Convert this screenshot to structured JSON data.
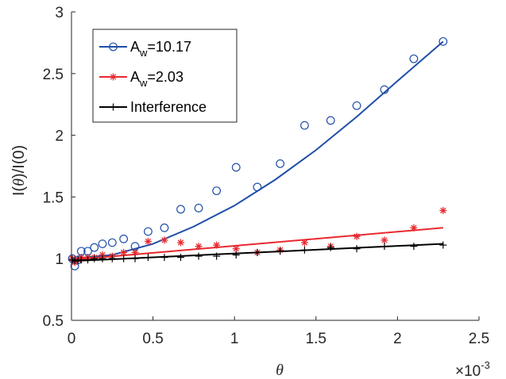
{
  "chart_data": {
    "type": "scatter",
    "xlabel": "θ",
    "ylabel": {
      "prefix": "I(",
      "symbol": "θ",
      "suffix": ")/I(0)"
    },
    "x_exponent": {
      "base": "×10",
      "power": "-3"
    },
    "xlim": [
      0,
      2.5
    ],
    "ylim": [
      0.5,
      3
    ],
    "xticks": [
      "0",
      "0.5",
      "1",
      "1.5",
      "2",
      "2.5"
    ],
    "yticks": [
      "0.5",
      "1",
      "1.5",
      "2",
      "2.5",
      "3"
    ],
    "grid": false,
    "legend_position": "top-left",
    "series": [
      {
        "name": "A_w=10.17",
        "legend_main": "A",
        "legend_sub": "w",
        "legend_rest": "=10.17",
        "marker": "circle",
        "color": "#1f4ea8",
        "x": [
          0.005,
          0.02,
          0.04,
          0.06,
          0.1,
          0.14,
          0.19,
          0.25,
          0.32,
          0.39,
          0.47,
          0.57,
          0.67,
          0.78,
          0.89,
          1.01,
          1.14,
          1.28,
          1.43,
          1.59,
          1.75,
          1.92,
          2.1,
          2.28
        ],
        "y": [
          1.0,
          0.94,
          0.99,
          1.06,
          1.06,
          1.09,
          1.12,
          1.13,
          1.16,
          1.1,
          1.22,
          1.25,
          1.4,
          1.41,
          1.55,
          1.74,
          1.58,
          1.77,
          2.08,
          2.12,
          2.24,
          2.37,
          2.62,
          2.76
        ],
        "fit_x": [
          0,
          0.25,
          0.5,
          0.75,
          1.0,
          1.25,
          1.5,
          1.75,
          2.0,
          2.28
        ],
        "fit_y": [
          1.0,
          1.03,
          1.12,
          1.26,
          1.43,
          1.64,
          1.88,
          2.15,
          2.44,
          2.76
        ]
      },
      {
        "name": "A_w=2.03",
        "legend_main": "A",
        "legend_sub": "w",
        "legend_rest": "=2.03",
        "marker": "asterisk",
        "color": "#e8292f",
        "x": [
          0.005,
          0.02,
          0.04,
          0.06,
          0.1,
          0.14,
          0.19,
          0.25,
          0.32,
          0.39,
          0.47,
          0.57,
          0.67,
          0.78,
          0.89,
          1.01,
          1.14,
          1.28,
          1.43,
          1.59,
          1.75,
          1.92,
          2.1,
          2.28
        ],
        "y": [
          1.0,
          0.97,
          0.99,
          1.01,
          1.01,
          1.01,
          1.03,
          1.02,
          1.05,
          1.05,
          1.14,
          1.15,
          1.13,
          1.1,
          1.11,
          1.08,
          1.05,
          1.07,
          1.13,
          1.1,
          1.18,
          1.15,
          1.25,
          1.39
        ],
        "fit_x": [
          0,
          2.28
        ],
        "fit_y": [
          0.99,
          1.25
        ]
      },
      {
        "name": "Interference",
        "legend_main": "Interference",
        "legend_sub": "",
        "legend_rest": "",
        "marker": "plus",
        "color": "#000000",
        "x": [
          0.005,
          0.02,
          0.04,
          0.06,
          0.1,
          0.14,
          0.19,
          0.25,
          0.32,
          0.39,
          0.47,
          0.57,
          0.67,
          0.78,
          0.89,
          1.01,
          1.14,
          1.28,
          1.43,
          1.59,
          1.75,
          1.92,
          2.1,
          2.28
        ],
        "y": [
          0.99,
          0.98,
          0.99,
          0.99,
          0.99,
          1.0,
          1.0,
          1.0,
          1.0,
          1.0,
          1.01,
          1.01,
          1.01,
          1.02,
          1.02,
          1.03,
          1.05,
          1.06,
          1.07,
          1.09,
          1.08,
          1.1,
          1.1,
          1.11
        ],
        "fit_x": [
          0,
          2.28
        ],
        "fit_y": [
          0.98,
          1.12
        ]
      }
    ]
  }
}
